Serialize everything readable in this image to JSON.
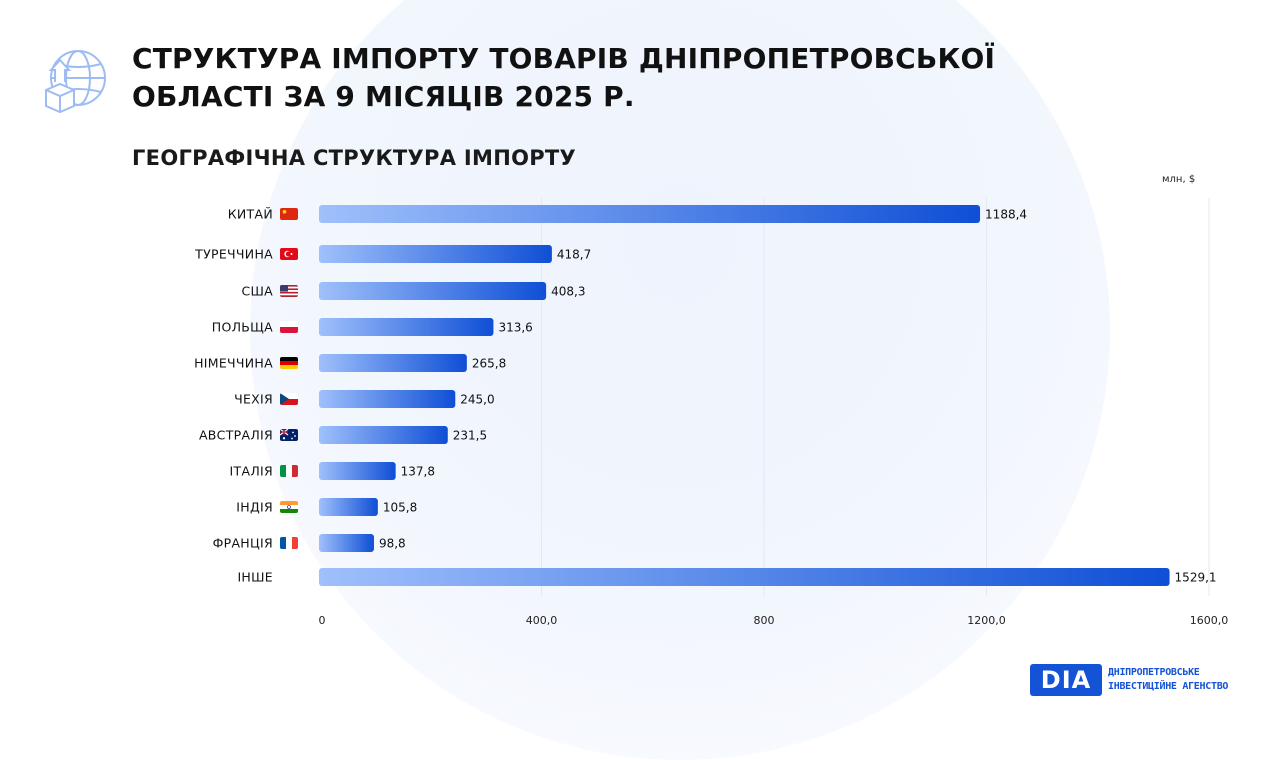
{
  "page": {
    "title": "СТРУКТУРА ІМПОРТУ ТОВАРІВ ДНІПРОПЕТРОВСЬКОЇ ОБЛАСТІ ЗА 9 МІСЯЦІВ 2025 Р.",
    "subtitle": "ГЕОГРАФІЧНА СТРУКТУРА ІМПОРТУ",
    "unit": "млн, $"
  },
  "logo": {
    "mark": "DIA",
    "line1": "ДНІПРОПЕТРОВСЬКЕ",
    "line2": "ІНВЕСТИЦІЙНЕ АГЕНСТВО"
  },
  "colors": {
    "bar_start": "#9fc0fb",
    "bar_end": "#0f4fd6",
    "grid": "#e3e8f2",
    "brand": "#1553d6"
  },
  "chart_data": {
    "type": "bar",
    "orientation": "horizontal",
    "title": "ГЕОГРАФІЧНА СТРУКТУРА ІМПОРТУ",
    "unit": "млн, $",
    "categories": [
      "КИТАЙ",
      "ТУРЕЧЧИНА",
      "США",
      "ПОЛЬЩА",
      "НІМЕЧЧИНА",
      "ЧЕХІЯ",
      "АВСТРАЛІЯ",
      "ІТАЛІЯ",
      "ІНДІЯ",
      "ФРАНЦІЯ",
      "ІНШЕ"
    ],
    "values": [
      1188.4,
      418.7,
      408.3,
      313.6,
      265.8,
      245.0,
      231.5,
      137.8,
      105.8,
      98.8,
      1529.1
    ],
    "value_labels": [
      "1188,4",
      "418,7",
      "408,3",
      "313,6",
      "265,8",
      "245,0",
      "231,5",
      "137,8",
      "105,8",
      "98,8",
      "1529,1"
    ],
    "flags": [
      "china",
      "turkey",
      "usa",
      "poland",
      "germany",
      "czechia",
      "australia",
      "italy",
      "india",
      "france",
      ""
    ],
    "x_ticks": [
      0,
      400,
      800,
      1200,
      1600
    ],
    "x_tick_labels": [
      "0",
      "400,0",
      "800",
      "1200,0",
      "1600,0"
    ],
    "xlim": [
      0,
      1600
    ],
    "grid": true
  }
}
